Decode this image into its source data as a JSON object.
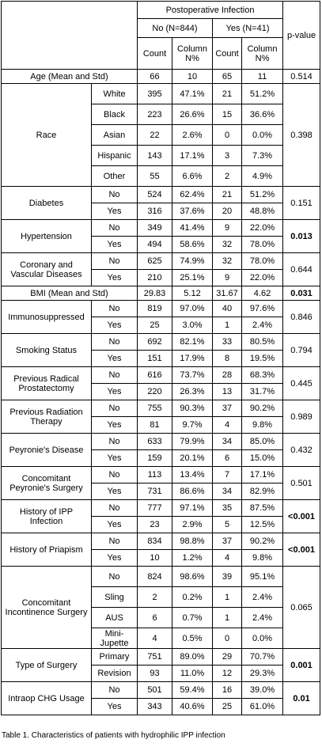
{
  "header": {
    "group": "Postoperative Infection",
    "no_group": "No (N=844)",
    "yes_group": "Yes (N=41)",
    "count": "Count",
    "pct": "Column N%",
    "p_value": "p-value"
  },
  "rows": [
    {
      "label": "Age (Mean and Std)",
      "cells": [
        66,
        10,
        65,
        11
      ],
      "p_value": "0.514",
      "bold": false
    },
    {
      "label": "Race",
      "levels": [
        [
          "White",
          395,
          "47.1%",
          21,
          "51.2%"
        ],
        [
          "Black",
          223,
          "26.6%",
          15,
          "36.6%"
        ],
        [
          "Asian",
          22,
          "2.6%",
          0,
          "0.0%"
        ],
        [
          "Hispanic",
          143,
          "17.1%",
          3,
          "7.3%"
        ],
        [
          "Other",
          55,
          "6.6%",
          2,
          "4.9%"
        ]
      ],
      "p_value": "0.398",
      "bold": false
    },
    {
      "label": "Diabetes",
      "levels": [
        [
          "No",
          524,
          "62.4%",
          21,
          "51.2%"
        ],
        [
          "Yes",
          316,
          "37.6%",
          20,
          "48.8%"
        ]
      ],
      "p_value": "0.151",
      "bold": false
    },
    {
      "label": "Hypertension",
      "levels": [
        [
          "No",
          349,
          "41.4%",
          9,
          "22.0%"
        ],
        [
          "Yes",
          494,
          "58.6%",
          32,
          "78.0%"
        ]
      ],
      "p_value": "0.013",
      "bold": true
    },
    {
      "label": "Coronary and Vascular Diseases",
      "levels": [
        [
          "No",
          625,
          "74.9%",
          32,
          "78.0%"
        ],
        [
          "Yes",
          210,
          "25.1%",
          9,
          "22.0%"
        ]
      ],
      "p_value": "0.644",
      "bold": false
    },
    {
      "label": "BMI (Mean and Std)",
      "cells": [
        29.83,
        5.12,
        31.67,
        4.62
      ],
      "p_value": "0.031",
      "bold": true
    },
    {
      "label": "Immunosuppressed",
      "levels": [
        [
          "No",
          819,
          "97.0%",
          40,
          "97.6%"
        ],
        [
          "Yes",
          25,
          "3.0%",
          1,
          "2.4%"
        ]
      ],
      "p_value": "0.846",
      "bold": false
    },
    {
      "label": "Smoking Status",
      "levels": [
        [
          "No",
          692,
          "82.1%",
          33,
          "80.5%"
        ],
        [
          "Yes",
          151,
          "17.9%",
          8,
          "19.5%"
        ]
      ],
      "p_value": "0.794",
      "bold": false
    },
    {
      "label": "Previous Radical Prostatectomy",
      "levels": [
        [
          "No",
          616,
          "73.7%",
          28,
          "68.3%"
        ],
        [
          "Yes",
          220,
          "26.3%",
          13,
          "31.7%"
        ]
      ],
      "p_value": "0.445",
      "bold": false
    },
    {
      "label": "Previous Radiation Therapy",
      "levels": [
        [
          "No",
          755,
          "90.3%",
          37,
          "90.2%"
        ],
        [
          "Yes",
          81,
          "9.7%",
          4,
          "9.8%"
        ]
      ],
      "p_value": "0.989",
      "bold": false
    },
    {
      "label": "Peyronie's Disease",
      "levels": [
        [
          "No",
          633,
          "79.9%",
          34,
          "85.0%"
        ],
        [
          "Yes",
          159,
          "20.1%",
          6,
          "15.0%"
        ]
      ],
      "p_value": "0.432",
      "bold": false
    },
    {
      "label": "Concomitant Peyronie's Surgery",
      "levels": [
        [
          "No",
          113,
          "13.4%",
          7,
          "17.1%"
        ],
        [
          "Yes",
          731,
          "86.6%",
          34,
          "82.9%"
        ]
      ],
      "p_value": "0.501",
      "bold": false
    },
    {
      "label": "History of IPP Infection",
      "levels": [
        [
          "No",
          777,
          "97.1%",
          35,
          "87.5%"
        ],
        [
          "Yes",
          23,
          "2.9%",
          5,
          "12.5%"
        ]
      ],
      "p_value": "<0.001",
      "bold": true
    },
    {
      "label": "History of Priapism",
      "levels": [
        [
          "No",
          834,
          "98.8%",
          37,
          "90.2%"
        ],
        [
          "Yes",
          10,
          "1.2%",
          4,
          "9.8%"
        ]
      ],
      "p_value": "<0.001",
      "bold": true
    },
    {
      "label": "Concomitant Incontinence Surgery",
      "levels": [
        [
          "No",
          824,
          "98.6%",
          39,
          "95.1%"
        ],
        [
          "Sling",
          2,
          "0.2%",
          1,
          "2.4%"
        ],
        [
          "AUS",
          6,
          "0.7%",
          1,
          "2.4%"
        ],
        [
          "Mini-Jupette",
          4,
          "0.5%",
          0,
          "0.0%"
        ]
      ],
      "p_value": "0.065",
      "bold": false
    },
    {
      "label": "Type of Surgery",
      "levels": [
        [
          "Primary",
          751,
          "89.0%",
          29,
          "70.7%"
        ],
        [
          "Revision",
          93,
          "11.0%",
          12,
          "29.3%"
        ]
      ],
      "p_value": "0.001",
      "bold": true
    },
    {
      "label": "Intraop CHG Usage",
      "levels": [
        [
          "No",
          501,
          "59.4%",
          16,
          "39.0%"
        ],
        [
          "Yes",
          343,
          "40.6%",
          25,
          "61.0%"
        ]
      ],
      "p_value": "0.01",
      "bold": true
    }
  ],
  "caption": "Table 1. Characteristics of patients with hydrophilic IPP infection"
}
